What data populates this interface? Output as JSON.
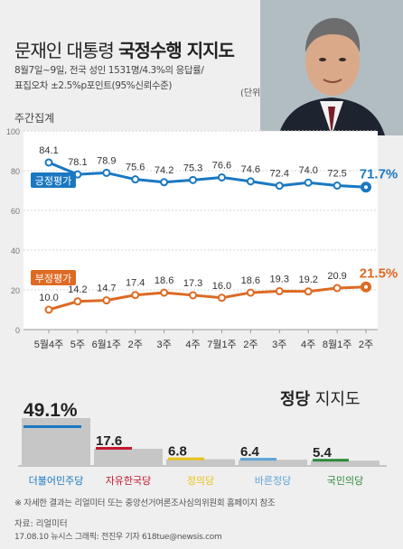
{
  "header": {
    "title_normal": "문재인 대통령 ",
    "title_bold": "국정수행 지지도"
  },
  "survey_info": {
    "line1": "8월7일~9일, 전국 성인 1531명/4.3%의 응답률/",
    "line2": "표집오차 ±2.5%p포인트(95%신뢰수준)"
  },
  "unit_label": "(단위: %)",
  "weekly_label": "주간집계",
  "colors": {
    "positive": "#1a78c2",
    "negative": "#dd6a23",
    "party_bar": "#c6c6c6"
  },
  "chart_data": [
    {
      "type": "line",
      "x": [
        "5월4주",
        "5주",
        "6월1주",
        "2주",
        "3주",
        "4주",
        "7월1주",
        "2주",
        "3주",
        "4주",
        "8월1주",
        "2주"
      ],
      "ylim": [
        0,
        100
      ],
      "yticks": [
        0,
        20,
        40,
        60,
        80,
        100
      ],
      "grid": true,
      "series": [
        {
          "name": "긍정평가",
          "values": [
            84.1,
            78.1,
            78.9,
            75.6,
            74.2,
            75.3,
            76.6,
            74.6,
            72.4,
            74.0,
            72.5,
            71.7
          ],
          "labels": [
            "84.1",
            "78.1",
            "78.9",
            "75.6",
            "74.2",
            "75.3",
            "76.6",
            "74.6",
            "72.4",
            "74.0",
            "72.5",
            "71.7%"
          ],
          "color": "#1a78c2"
        },
        {
          "name": "부정평가",
          "values": [
            10.0,
            14.2,
            14.7,
            17.4,
            18.6,
            17.3,
            16.0,
            18.6,
            19.3,
            19.2,
            20.9,
            21.5
          ],
          "labels": [
            "10.0",
            "14.2",
            "14.7",
            "17.4",
            "18.6",
            "17.3",
            "16.0",
            "18.6",
            "19.3",
            "19.2",
            "20.9",
            "21.5%"
          ],
          "color": "#dd6a23"
        }
      ]
    },
    {
      "type": "bar",
      "title": "정당 지지도",
      "categories": [
        "더불어민주당",
        "자유한국당",
        "정의당",
        "바른정당",
        "국민의당"
      ],
      "values": [
        49.1,
        17.6,
        6.8,
        6.4,
        5.4
      ],
      "labels": [
        "49.1%",
        "17.6",
        "6.8",
        "6.4",
        "5.4"
      ],
      "colors": [
        "#1a78c2",
        "#c2182f",
        "#e8c21a",
        "#5ea3d8",
        "#2e8a3c"
      ]
    }
  ],
  "footnote": "※ 자세한 결과는 리얼미터 또는 중앙선거여론조사심의위원회 홈페이지 참조",
  "source": "자료: 리얼미터",
  "credit": "17.08.10 뉴시스 그래픽: 전진우 기자 618tue@newsis.com"
}
